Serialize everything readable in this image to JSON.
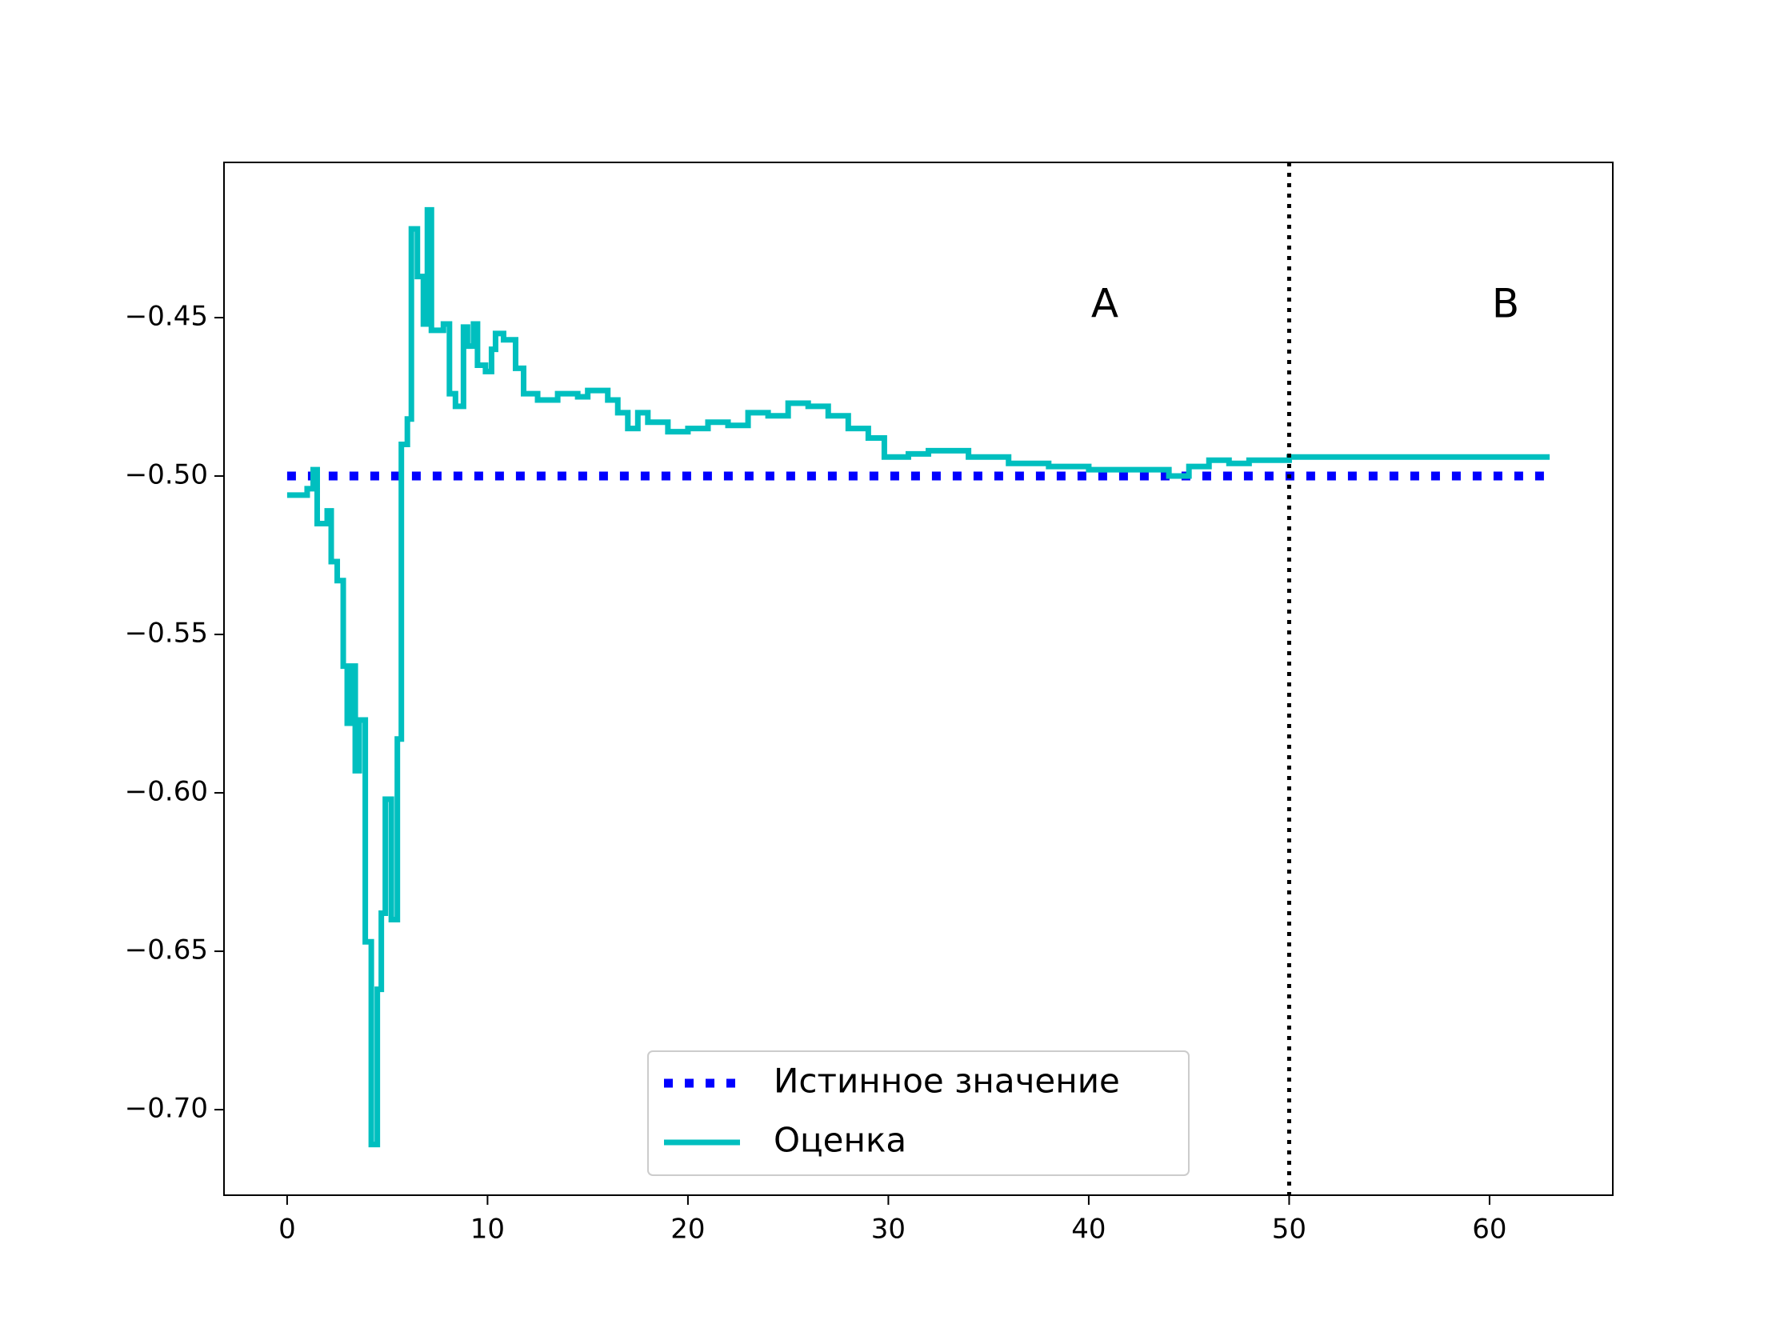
{
  "chart_data": {
    "type": "line",
    "drawstyle": "steps",
    "xlim": [
      -3.15,
      66.15
    ],
    "ylim": [
      -0.727,
      -0.401
    ],
    "xticks": [
      0,
      10,
      20,
      30,
      40,
      50,
      60
    ],
    "yticks": [
      {
        "value": -0.45,
        "label": "−0.45"
      },
      {
        "value": -0.5,
        "label": "−0.50"
      },
      {
        "value": -0.55,
        "label": "−0.55"
      },
      {
        "value": -0.6,
        "label": "−0.60"
      },
      {
        "value": -0.65,
        "label": "−0.65"
      },
      {
        "value": -0.7,
        "label": "−0.70"
      }
    ],
    "grid": false,
    "legend": "lower center",
    "vlines": [
      50
    ],
    "vline_color": "#000000",
    "annotations": [
      {
        "text": "A",
        "x": 40.8,
        "y": -0.4465
      },
      {
        "text": "B",
        "x": 60.8,
        "y": -0.4465
      }
    ],
    "series": [
      {
        "name": "Истинное значение",
        "color": "#0000ff",
        "style": "dotted",
        "x": [
          0,
          63
        ],
        "values": [
          -0.5,
          -0.5
        ]
      },
      {
        "name": "Оценка",
        "color": "#00bfbf",
        "style": "solid",
        "x": [
          0,
          1.0,
          1.3,
          1.5,
          2.0,
          2.2,
          2.5,
          2.8,
          3.0,
          3.2,
          3.4,
          3.6,
          3.9,
          4.2,
          4.5,
          4.7,
          4.9,
          5.2,
          5.5,
          5.7,
          6.0,
          6.2,
          6.5,
          6.8,
          7.0,
          7.2,
          7.8,
          8.1,
          8.4,
          8.8,
          9.0,
          9.3,
          9.5,
          9.9,
          10.2,
          10.4,
          10.8,
          11.4,
          11.8,
          12.5,
          13.5,
          14.5,
          15.0,
          16.0,
          16.5,
          17.0,
          17.5,
          18.0,
          19.0,
          20.0,
          21.0,
          22.0,
          23.0,
          24.0,
          25.0,
          26.0,
          27.0,
          28.0,
          29.0,
          29.8,
          31,
          32,
          34,
          36,
          38,
          40,
          42,
          44,
          45,
          46,
          47,
          48,
          50,
          63
        ],
        "values": [
          -0.506,
          -0.504,
          -0.498,
          -0.515,
          -0.511,
          -0.527,
          -0.533,
          -0.56,
          -0.578,
          -0.56,
          -0.593,
          -0.577,
          -0.647,
          -0.711,
          -0.662,
          -0.638,
          -0.602,
          -0.64,
          -0.583,
          -0.49,
          -0.482,
          -0.422,
          -0.437,
          -0.452,
          -0.416,
          -0.454,
          -0.452,
          -0.474,
          -0.478,
          -0.453,
          -0.459,
          -0.452,
          -0.465,
          -0.467,
          -0.46,
          -0.455,
          -0.457,
          -0.466,
          -0.474,
          -0.476,
          -0.474,
          -0.475,
          -0.473,
          -0.476,
          -0.48,
          -0.485,
          -0.48,
          -0.483,
          -0.486,
          -0.485,
          -0.483,
          -0.484,
          -0.48,
          -0.481,
          -0.477,
          -0.478,
          -0.481,
          -0.485,
          -0.488,
          -0.494,
          -0.493,
          -0.492,
          -0.494,
          -0.496,
          -0.497,
          -0.498,
          -0.498,
          -0.5,
          -0.497,
          -0.495,
          -0.496,
          -0.495,
          -0.494,
          -0.494
        ]
      }
    ]
  }
}
